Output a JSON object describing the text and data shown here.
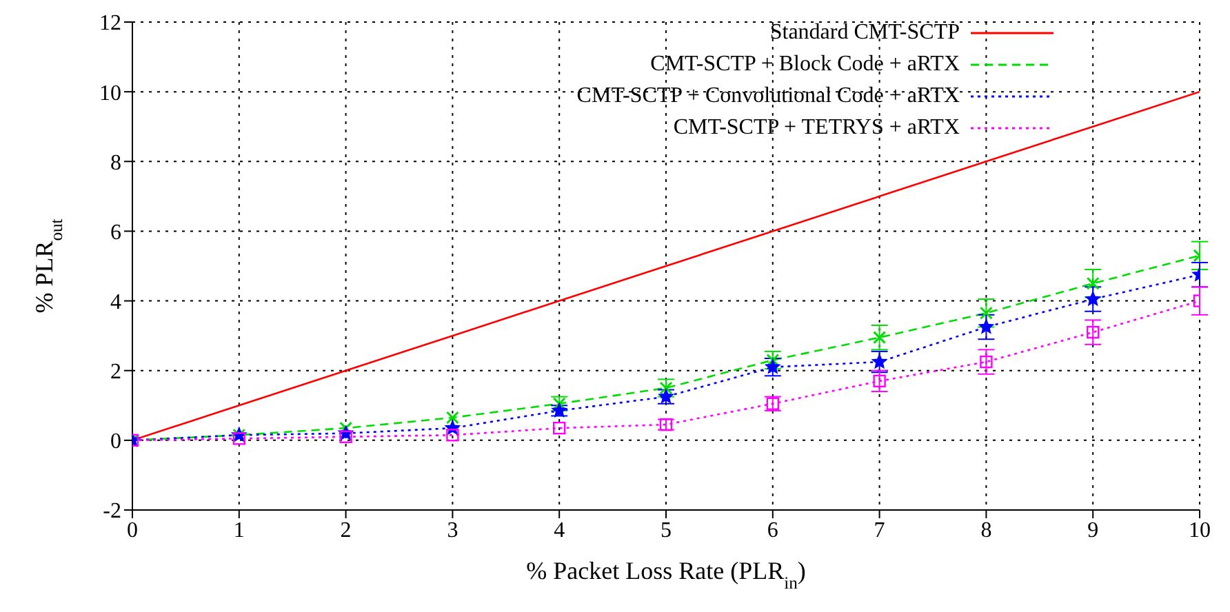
{
  "chart_data": {
    "type": "line",
    "xlabel": "% Packet Loss Rate (PLR$_{in}$)",
    "ylabel": "% PLR$_{out}$",
    "x": [
      0,
      1,
      2,
      3,
      4,
      5,
      6,
      7,
      8,
      9,
      10
    ],
    "xlim": [
      0,
      10
    ],
    "xticks": [
      0,
      1,
      2,
      3,
      4,
      5,
      6,
      7,
      8,
      9,
      10
    ],
    "ylim": [
      -2,
      12
    ],
    "yticks": [
      -2,
      0,
      2,
      4,
      6,
      8,
      10,
      12
    ],
    "grid": true,
    "legend": "top right",
    "series": [
      {
        "name": "Standard CMT-SCTP",
        "color": "#ff0000",
        "marker": "none",
        "line_style": "solid",
        "values": [
          0,
          1,
          2,
          3,
          4,
          5,
          6,
          7,
          8,
          9,
          10
        ]
      },
      {
        "name": "CMT-SCTP + Block Code + aRTX",
        "color": "#00dd00",
        "marker": "cross",
        "line_style": "dashed",
        "values": [
          0,
          0.15,
          0.35,
          0.65,
          1.05,
          1.5,
          2.3,
          2.95,
          3.65,
          4.5,
          5.3
        ],
        "errors": [
          null,
          null,
          null,
          null,
          0.2,
          0.25,
          0.25,
          0.35,
          0.4,
          0.4,
          0.4
        ]
      },
      {
        "name": "CMT-SCTP + Convolutional Code + aRTX",
        "color": "#0000ff",
        "marker": "star",
        "line_style": "dotted",
        "values": [
          0,
          0.15,
          0.2,
          0.35,
          0.85,
          1.25,
          2.1,
          2.25,
          3.25,
          4.05,
          4.75
        ],
        "errors": [
          null,
          null,
          null,
          null,
          0.15,
          0.2,
          0.25,
          0.3,
          0.35,
          0.35,
          0.35
        ]
      },
      {
        "name": "CMT-SCTP + TETRYS + aRTX",
        "color": "#ff00ff",
        "marker": "square",
        "line_style": "dotted",
        "values": [
          0,
          0.05,
          0.1,
          0.15,
          0.35,
          0.45,
          1.05,
          1.7,
          2.25,
          3.1,
          4.0
        ],
        "errors": [
          null,
          null,
          null,
          null,
          null,
          0.15,
          0.2,
          0.3,
          0.35,
          0.35,
          0.4
        ]
      }
    ]
  }
}
